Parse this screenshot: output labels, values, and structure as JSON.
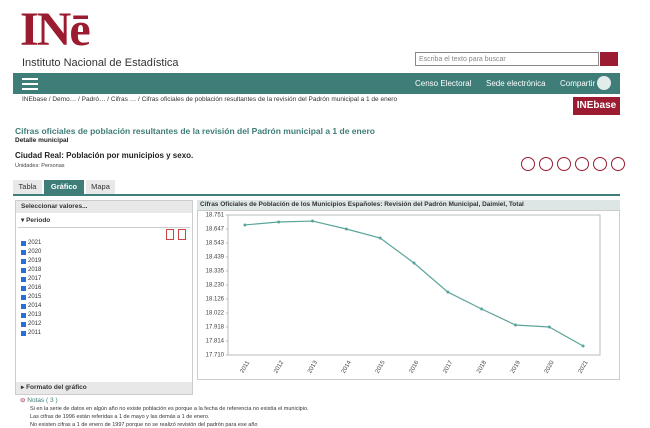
{
  "header": {
    "logo": "INē",
    "institute": "Instituto Nacional de Estadística",
    "search_placeholder": "Escriba el texto para buscar"
  },
  "nav": {
    "links": [
      "Censo Electoral",
      "Sede electrónica",
      "Compartir"
    ]
  },
  "breadcrumb": [
    "INEbase",
    "/ Demo…",
    "/ Padró…",
    "/ Cifras …",
    "/ Cifras oficiales de población resultantes de la revisión del Padrón municipal a 1 de enero"
  ],
  "inebase_logo": "INEbase",
  "page": {
    "title": "Cifras oficiales de población resultantes de la revisión del Padrón municipal a 1 de enero",
    "subtitle": "Detalle municipal",
    "table_title": "Ciudad Real: Población por municipios y sexo.",
    "units": "Unidades:  Personas"
  },
  "tabs": [
    "Tabla",
    "Gráfico",
    "Mapa"
  ],
  "panel": {
    "heading": "Seleccionar valores...",
    "period": "Periodo",
    "years": [
      "2021",
      "2020",
      "2019",
      "2018",
      "2017",
      "2016",
      "2015",
      "2014",
      "2013",
      "2012",
      "2011"
    ],
    "format": "Formato del gráfico"
  },
  "notes": {
    "heading": "Notas ( 3 )",
    "items": [
      "Si en la serie de datos en algún año no existe población es porque a la fecha de referencia no existía el municipio.",
      "Las cifras de 1996 están referidas a 1 de mayo y las demás a 1 de enero.",
      "No existen cifras a 1 de enero de 1997 porque no se realizó revisión del padrón para ese año"
    ]
  },
  "chart_data": {
    "type": "line",
    "title": "Cifras Oficiales de Población de los Municipios Españoles: Revisión del Padrón Municipal, Daimiel, Total",
    "categories": [
      "2011",
      "2012",
      "2013",
      "2014",
      "2015",
      "2016",
      "2017",
      "2018",
      "2019",
      "2020",
      "2021"
    ],
    "values": [
      18677,
      18699,
      18706,
      18647,
      18580,
      18394,
      18178,
      18052,
      17933,
      17918,
      17777
    ],
    "color": "#5aa59b",
    "ylim": [
      17710,
      18751
    ],
    "yticks": [
      {
        "value": 17710,
        "label": "17.710"
      },
      {
        "value": 17814,
        "label": "17.814"
      },
      {
        "value": 17918,
        "label": "17.918"
      },
      {
        "value": 18022,
        "label": "18.022"
      },
      {
        "value": 18126,
        "label": "18.126"
      },
      {
        "value": 18230,
        "label": "18.230"
      },
      {
        "value": 18335,
        "label": "18.335"
      },
      {
        "value": 18439,
        "label": "18.439"
      },
      {
        "value": 18543,
        "label": "18.543"
      },
      {
        "value": 18647,
        "label": "18.647"
      },
      {
        "value": 18751,
        "label": "18.751"
      }
    ],
    "grid": false
  }
}
